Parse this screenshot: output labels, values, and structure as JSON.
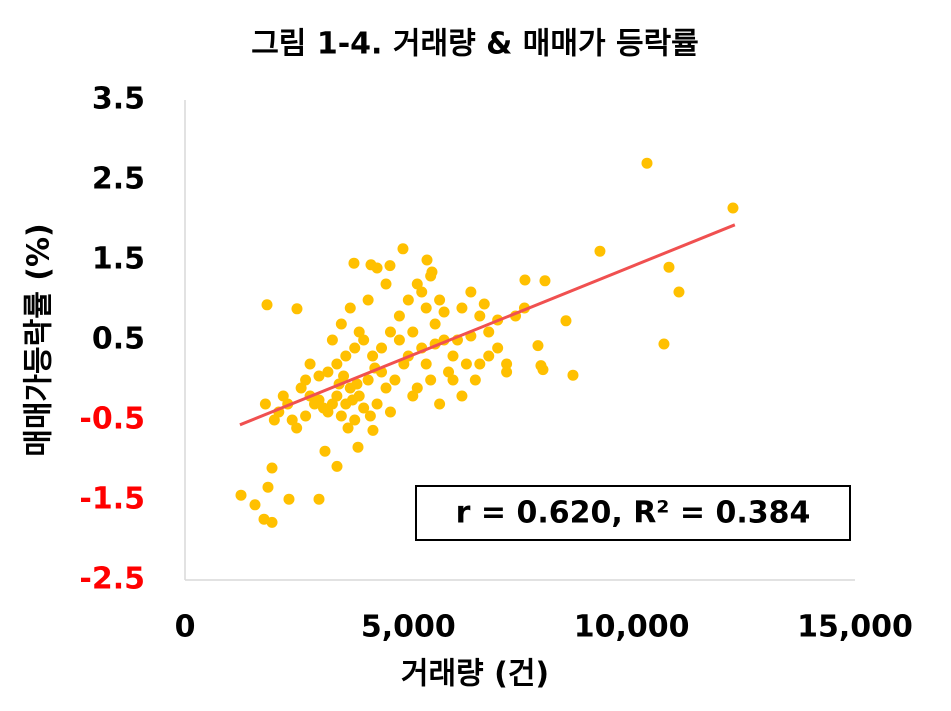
{
  "chart_data": {
    "type": "scatter",
    "title": "그림 1-4.  거래량 & 매매가 등락률",
    "x_label": "거래량 (건)",
    "y_label": "매매가등락률 (%)",
    "annotation": "r = 0.620, R² = 0.384",
    "xlim": [
      0,
      15000
    ],
    "xticks": [
      0,
      {
        "value": 5000,
        "label": "5,000"
      },
      {
        "value": 10000,
        "label": "10,000"
      },
      {
        "value": 15000,
        "label": "15,000"
      }
    ],
    "ylim": [
      -2.5,
      3.5
    ],
    "yticks": [
      3.5,
      2.5,
      1.5,
      0.5,
      -0.5,
      -1.5,
      -2.5
    ],
    "negative_tick_color": "#ff0000",
    "grid": false,
    "points": {
      "color": "#ffc000",
      "x": [
        10343,
        12268,
        9290,
        10835,
        11059,
        10723,
        8529,
        8686,
        8059,
        7611,
        7902,
        7969,
        8014,
        1836,
        2507,
        1254,
        1567,
        1858,
        1948,
        1769,
        1948,
        2328,
        3000,
        3134,
        3403,
        3873,
        4208,
        4880,
        3783,
        4164,
        4589,
        5418,
        5529,
        2600,
        2700,
        2800,
        2900,
        3000,
        3100,
        3200,
        3300,
        3400,
        3500,
        3600,
        3700,
        3800,
        3900,
        4000,
        3200,
        3400,
        3600,
        3800,
        4000,
        4200,
        4400,
        4600,
        4800,
        5000,
        5200,
        5400,
        5600,
        5800,
        6000,
        6200,
        6400,
        6600,
        6800,
        7000,
        7200,
        7400,
        7600,
        4300,
        4500,
        4700,
        4900,
        5100,
        5300,
        5500,
        5700,
        5900,
        6100,
        6300,
        6500,
        2300,
        2400,
        2500,
        2200,
        2000,
        1800,
        2100,
        3300,
        3500,
        3700,
        3900,
        4100,
        4300,
        4500,
        5100,
        5300,
        5500,
        5700,
        4400,
        4600,
        4800,
        5000,
        5200,
        5400,
        6000,
        6200,
        6600,
        6800,
        7200,
        3000,
        2800,
        2700,
        3650,
        4100,
        3850,
        4150,
        4250,
        5600,
        5800,
        6400,
        6700,
        7000,
        3450,
        3550,
        3750
      ],
      "y": [
        2.71,
        2.15,
        1.61,
        1.41,
        1.1,
        0.45,
        0.74,
        0.06,
        1.24,
        1.25,
        0.43,
        0.18,
        0.13,
        0.94,
        0.89,
        -1.44,
        -1.56,
        -1.34,
        -1.1,
        -1.74,
        -1.78,
        -1.49,
        -1.49,
        -0.89,
        -1.08,
        -0.84,
        -0.63,
        1.64,
        1.46,
        1.44,
        1.43,
        1.5,
        1.35,
        -0.1,
        0.0,
        -0.2,
        -0.3,
        -0.25,
        -0.35,
        -0.4,
        -0.3,
        -0.2,
        -0.45,
        -0.3,
        -0.1,
        -0.5,
        -0.2,
        -0.35,
        0.1,
        0.2,
        0.3,
        0.4,
        0.5,
        0.3,
        0.1,
        0.6,
        0.8,
        1.0,
        1.2,
        0.9,
        0.7,
        0.5,
        0.3,
        0.9,
        1.1,
        0.8,
        0.6,
        0.4,
        0.2,
        0.8,
        0.9,
        -0.3,
        -0.1,
        0.0,
        0.2,
        -0.2,
        0.4,
        0.0,
        -0.3,
        0.1,
        0.5,
        0.2,
        0.0,
        -0.3,
        -0.5,
        -0.6,
        -0.2,
        -0.5,
        -0.3,
        -0.4,
        0.5,
        0.7,
        0.9,
        0.6,
        1.0,
        1.4,
        1.2,
        0.6,
        1.1,
        1.3,
        1.0,
        0.4,
        -0.4,
        0.5,
        0.3,
        -0.1,
        0.2,
        0.0,
        -0.2,
        0.2,
        0.3,
        0.1,
        0.05,
        0.2,
        -0.45,
        -0.6,
        0.0,
        -0.05,
        -0.45,
        0.15,
        0.45,
        0.85,
        0.55,
        0.95,
        0.75,
        -0.05,
        0.05,
        -0.25
      ]
    },
    "trendline": {
      "color": "#f05050",
      "x": [
        1230,
        12310
      ],
      "y": [
        -0.56,
        1.94
      ]
    }
  }
}
